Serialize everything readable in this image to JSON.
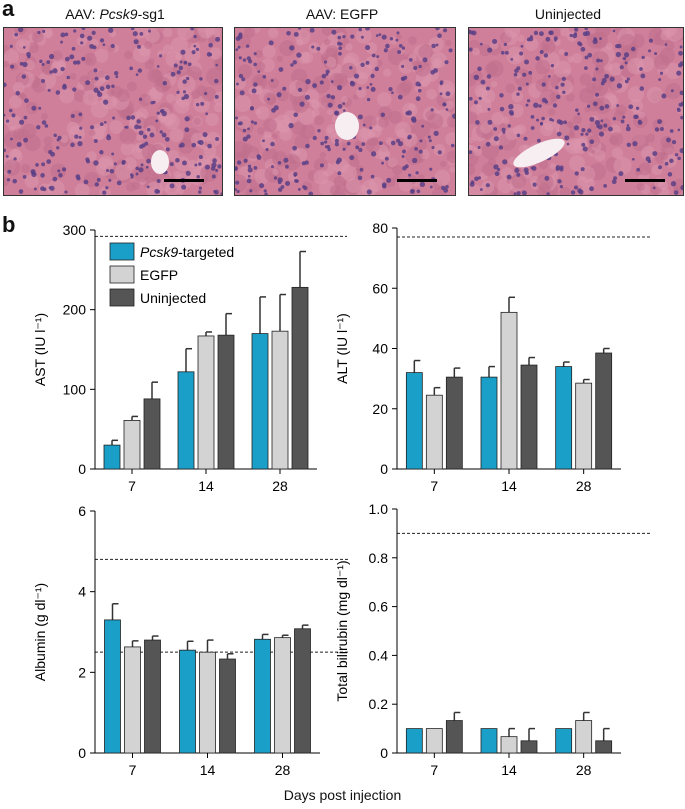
{
  "panel_a_label": "a",
  "panel_b_label": "b",
  "micrographs": [
    {
      "title_prefix": "AAV: ",
      "title_italic": "Pcsk9",
      "title_suffix": "-sg1"
    },
    {
      "title_prefix": "AAV: EGFP",
      "title_italic": "",
      "title_suffix": ""
    },
    {
      "title_prefix": "Uninjected",
      "title_italic": "",
      "title_suffix": ""
    }
  ],
  "shared_xlabel": "Days post injection",
  "legend": [
    {
      "italic": "Pcsk9",
      "text": "-targeted",
      "color": "#1a9fc9"
    },
    {
      "italic": "",
      "text": "EGFP",
      "color": "#d3d3d3"
    },
    {
      "italic": "",
      "text": "Uninjected",
      "color": "#555555"
    }
  ],
  "chart_data": [
    {
      "type": "bar",
      "ylabel": "AST (IU l⁻¹)",
      "categories": [
        "7",
        "14",
        "28"
      ],
      "ylim": [
        0,
        300
      ],
      "yticks": [
        0,
        100,
        200,
        300
      ],
      "reference_lines": [
        292
      ],
      "series": [
        {
          "name": "Pcsk9-targeted",
          "values": [
            30,
            122,
            170
          ],
          "errors": [
            6,
            29,
            46
          ]
        },
        {
          "name": "EGFP",
          "values": [
            61,
            167,
            173
          ],
          "errors": [
            5,
            5,
            46
          ]
        },
        {
          "name": "Uninjected",
          "values": [
            88,
            168,
            228
          ],
          "errors": [
            21,
            27,
            45
          ]
        }
      ]
    },
    {
      "type": "bar",
      "ylabel": "ALT (IU l⁻¹)",
      "categories": [
        "7",
        "14",
        "28"
      ],
      "ylim": [
        0,
        80
      ],
      "yticks": [
        0,
        20,
        40,
        60,
        80
      ],
      "reference_lines": [
        77
      ],
      "series": [
        {
          "name": "Pcsk9-targeted",
          "values": [
            32,
            30.5,
            34
          ],
          "errors": [
            4,
            3.5,
            1.5
          ]
        },
        {
          "name": "EGFP",
          "values": [
            24.5,
            52,
            28.5
          ],
          "errors": [
            2.5,
            5,
            1.2
          ]
        },
        {
          "name": "Uninjected",
          "values": [
            30.5,
            34.5,
            38.5
          ],
          "errors": [
            3,
            2.5,
            1.5
          ]
        }
      ]
    },
    {
      "type": "bar",
      "ylabel": "Albumin (g dl⁻¹)",
      "categories": [
        "7",
        "14",
        "28"
      ],
      "ylim": [
        0,
        6
      ],
      "yticks": [
        0,
        2,
        4,
        6
      ],
      "reference_lines": [
        4.8,
        2.5
      ],
      "series": [
        {
          "name": "Pcsk9-targeted",
          "values": [
            3.3,
            2.55,
            2.82
          ],
          "errors": [
            0.4,
            0.22,
            0.12
          ]
        },
        {
          "name": "EGFP",
          "values": [
            2.63,
            2.5,
            2.86
          ],
          "errors": [
            0.15,
            0.3,
            0.06
          ]
        },
        {
          "name": "Uninjected",
          "values": [
            2.8,
            2.33,
            3.08
          ],
          "errors": [
            0.1,
            0.13,
            0.09
          ]
        }
      ]
    },
    {
      "type": "bar",
      "ylabel": "Total bilirubin  (mg dl⁻¹)",
      "categories": [
        "7",
        "14",
        "28"
      ],
      "ylim": [
        0,
        1.0
      ],
      "yticks": [
        0,
        0.2,
        0.4,
        0.6,
        0.8,
        1.0
      ],
      "reference_lines": [
        0.9
      ],
      "series": [
        {
          "name": "Pcsk9-targeted",
          "values": [
            0.1,
            0.1,
            0.1
          ],
          "errors": [
            0,
            0,
            0
          ]
        },
        {
          "name": "EGFP",
          "values": [
            0.1,
            0.067,
            0.133
          ],
          "errors": [
            0,
            0.033,
            0.033
          ]
        },
        {
          "name": "Uninjected",
          "values": [
            0.133,
            0.05,
            0.05
          ],
          "errors": [
            0.033,
            0.05,
            0.05
          ]
        }
      ]
    }
  ]
}
